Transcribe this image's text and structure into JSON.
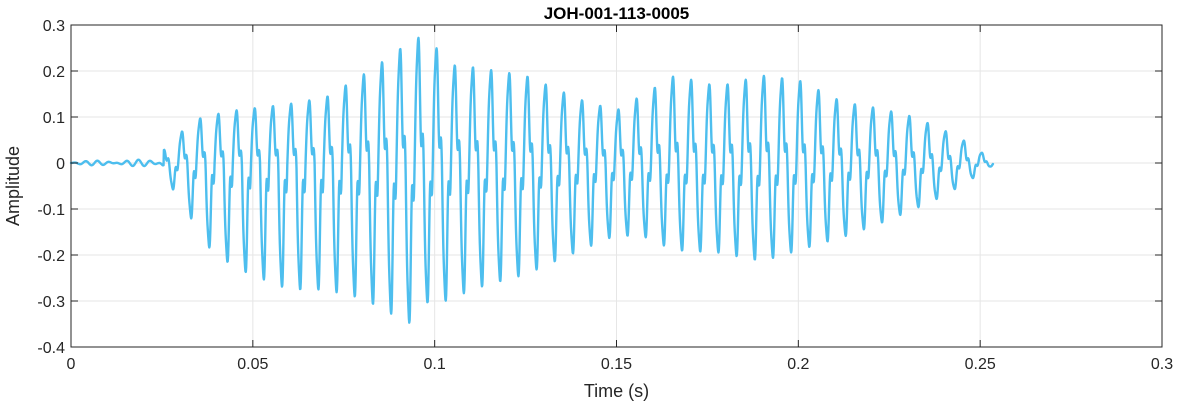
{
  "chart_data": {
    "type": "line",
    "title": "JOH-001-113-0005",
    "xlabel": "Time (s)",
    "ylabel": "Amplitude",
    "xlim": [
      0,
      0.3
    ],
    "ylim": [
      -0.4,
      0.3
    ],
    "xticks": [
      0,
      0.05,
      0.1,
      0.15,
      0.2,
      0.25,
      0.3
    ],
    "xtick_labels": [
      "0",
      "0.05",
      "0.1",
      "0.15",
      "0.2",
      "0.25",
      "0.3"
    ],
    "yticks": [
      -0.4,
      -0.3,
      -0.2,
      -0.1,
      0,
      0.1,
      0.2,
      0.3
    ],
    "ytick_labels": [
      "-0.4",
      "-0.3",
      "-0.2",
      "-0.1",
      "0",
      "0.1",
      "0.2",
      "0.3"
    ],
    "grid": true,
    "legend": "none",
    "line_color": "#4dbeee",
    "series": [
      {
        "signal_start": 0.0,
        "signal_end": 0.2535,
        "onset": 0.0255,
        "carrier_frequency_hz": 200,
        "positive_envelope": [
          [
            0.0,
            0.004
          ],
          [
            0.024,
            0.008
          ],
          [
            0.027,
            0.05
          ],
          [
            0.031,
            0.075
          ],
          [
            0.036,
            0.105
          ],
          [
            0.045,
            0.12
          ],
          [
            0.06,
            0.135
          ],
          [
            0.07,
            0.15
          ],
          [
            0.08,
            0.2
          ],
          [
            0.088,
            0.245
          ],
          [
            0.094,
            0.285
          ],
          [
            0.098,
            0.29
          ],
          [
            0.104,
            0.225
          ],
          [
            0.11,
            0.22
          ],
          [
            0.125,
            0.2
          ],
          [
            0.14,
            0.145
          ],
          [
            0.15,
            0.12
          ],
          [
            0.158,
            0.16
          ],
          [
            0.166,
            0.2
          ],
          [
            0.178,
            0.175
          ],
          [
            0.19,
            0.2
          ],
          [
            0.2,
            0.19
          ],
          [
            0.212,
            0.14
          ],
          [
            0.222,
            0.125
          ],
          [
            0.232,
            0.105
          ],
          [
            0.24,
            0.075
          ],
          [
            0.247,
            0.045
          ],
          [
            0.2535,
            0.005
          ]
        ],
        "negative_envelope": [
          [
            0.0,
            0.004
          ],
          [
            0.024,
            0.008
          ],
          [
            0.027,
            0.05
          ],
          [
            0.031,
            0.09
          ],
          [
            0.036,
            0.18
          ],
          [
            0.045,
            0.24
          ],
          [
            0.06,
            0.29
          ],
          [
            0.07,
            0.29
          ],
          [
            0.08,
            0.31
          ],
          [
            0.088,
            0.345
          ],
          [
            0.094,
            0.37
          ],
          [
            0.098,
            0.32
          ],
          [
            0.104,
            0.315
          ],
          [
            0.11,
            0.29
          ],
          [
            0.125,
            0.255
          ],
          [
            0.14,
            0.2
          ],
          [
            0.15,
            0.165
          ],
          [
            0.158,
            0.17
          ],
          [
            0.166,
            0.2
          ],
          [
            0.178,
            0.205
          ],
          [
            0.19,
            0.225
          ],
          [
            0.2,
            0.2
          ],
          [
            0.212,
            0.17
          ],
          [
            0.222,
            0.14
          ],
          [
            0.232,
            0.105
          ],
          [
            0.24,
            0.075
          ],
          [
            0.247,
            0.04
          ],
          [
            0.2535,
            0.005
          ]
        ]
      }
    ]
  }
}
